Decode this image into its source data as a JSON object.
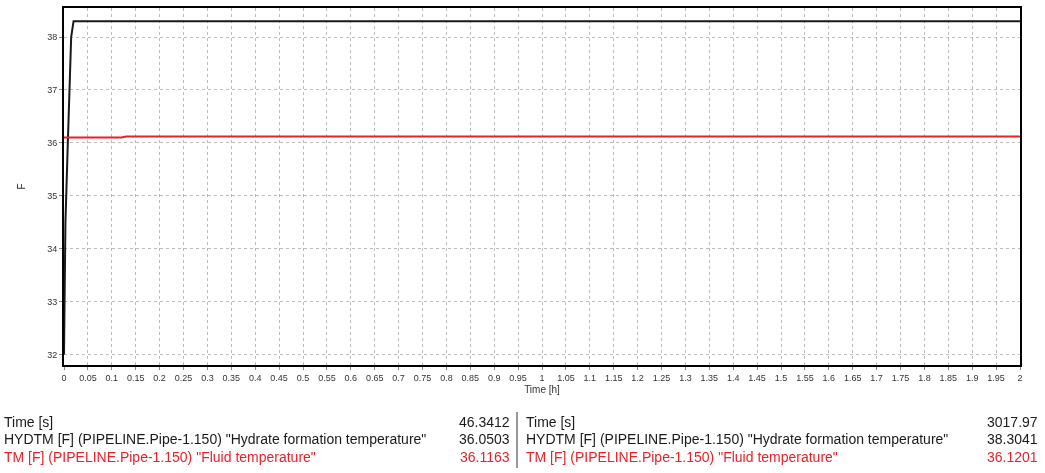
{
  "chart_data": {
    "type": "line",
    "xlabel": "Time [h]",
    "ylabel": "F",
    "x": [
      0,
      0.003,
      0.008,
      0.015,
      0.02,
      2
    ],
    "series": [
      {
        "color": "#1a1a1a",
        "values": [
          32.0,
          34.5,
          36.0,
          38.0,
          38.3,
          38.3
        ]
      },
      {
        "color": "#e8222a",
        "x": [
          0,
          0.12,
          0.13,
          2
        ],
        "values": [
          36.1,
          36.1,
          36.12,
          36.12
        ]
      }
    ],
    "xlim": [
      0,
      2
    ],
    "ylim": [
      31.8,
      38.55
    ],
    "xticks": [
      0,
      0.05,
      0.1,
      0.15,
      0.2,
      0.25,
      0.3,
      0.35,
      0.4,
      0.45,
      0.5,
      0.55,
      0.6,
      0.65,
      0.7,
      0.75,
      0.8,
      0.85,
      0.9,
      0.95,
      1,
      1.05,
      1.1,
      1.15,
      1.2,
      1.25,
      1.3,
      1.35,
      1.4,
      1.45,
      1.5,
      1.55,
      1.6,
      1.65,
      1.7,
      1.75,
      1.8,
      1.85,
      1.9,
      1.95,
      2
    ],
    "yticks": [
      32,
      33,
      34,
      35,
      36,
      37,
      38
    ],
    "grid": true,
    "line_style": "solid",
    "annotations": [
      "Time [s]",
      "46.3412",
      "HYDTM [F] (PIPELINE.Pipe-1.150) \"Hydrate formation temperature\"",
      "36.0503",
      "TM [F] (PIPELINE.Pipe-1.150) \"Fluid temperature\"",
      "36.1163",
      "Time [s]",
      "3017.97",
      "HYDTM [F] (PIPELINE.Pipe-1.150) \"Hydrate formation temperature\"",
      "38.3041",
      "TM [F] (PIPELINE.Pipe-1.150) \"Fluid temperature\"",
      "36.1201"
    ]
  }
}
